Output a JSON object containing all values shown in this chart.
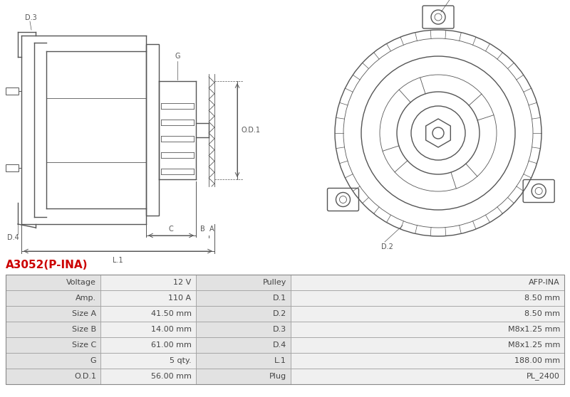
{
  "title": "A3052(P-INA)",
  "title_color": "#cc0000",
  "bg_color": "#ffffff",
  "table_row_bg1": "#e2e2e2",
  "table_row_bg2": "#f0f0f0",
  "table_data": [
    [
      "Voltage",
      "12 V",
      "Pulley",
      "AFP-INA"
    ],
    [
      "Amp.",
      "110 A",
      "D.1",
      "8.50 mm"
    ],
    [
      "Size A",
      "41.50 mm",
      "D.2",
      "8.50 mm"
    ],
    [
      "Size B",
      "14.00 mm",
      "D.3",
      "M8x1.25 mm"
    ],
    [
      "Size C",
      "61.00 mm",
      "D.4",
      "M8x1.25 mm"
    ],
    [
      "G",
      "5 qty.",
      "L.1",
      "188.00 mm"
    ],
    [
      "O.D.1",
      "56.00 mm",
      "Plug",
      "PL_2400"
    ]
  ],
  "line_color": "#999999",
  "text_color": "#444444",
  "draw_color": "#555555"
}
